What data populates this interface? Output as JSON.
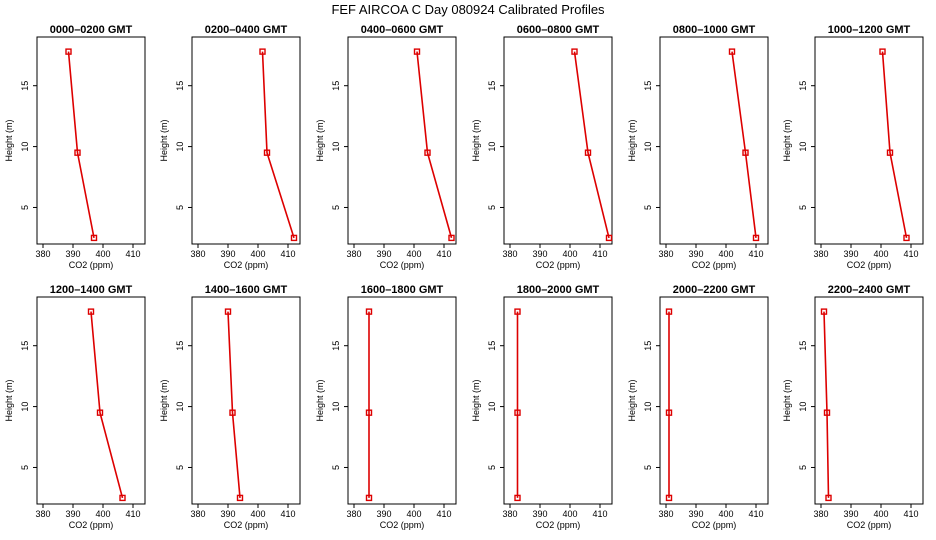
{
  "chart_data": {
    "type": "line",
    "title": "FEF  AIRCOA C  Day 080924  Calibrated Profiles",
    "xlabel": "CO2 (ppm)",
    "ylabel": "Height (m)",
    "xlim": [
      378,
      414
    ],
    "ylim": [
      2,
      19
    ],
    "xticks": [
      380,
      390,
      400,
      410
    ],
    "yticks": [
      5,
      10,
      15
    ],
    "heights": [
      17.8,
      9.5,
      2.5
    ],
    "panels": [
      {
        "title": "0000–0200 GMT",
        "values": [
          388.5,
          391.5,
          397.0
        ]
      },
      {
        "title": "0200–0400 GMT",
        "values": [
          401.5,
          403.0,
          412.0
        ]
      },
      {
        "title": "0400–0600 GMT",
        "values": [
          401.0,
          404.5,
          412.5
        ]
      },
      {
        "title": "0600–0800 GMT",
        "values": [
          401.5,
          406.0,
          413.0
        ]
      },
      {
        "title": "0800–1000 GMT",
        "values": [
          402.0,
          406.5,
          410.0
        ]
      },
      {
        "title": "1000–1200 GMT",
        "values": [
          400.5,
          403.0,
          408.5
        ]
      },
      {
        "title": "1200–1400 GMT",
        "values": [
          396.0,
          399.0,
          406.5
        ]
      },
      {
        "title": "1400–1600 GMT",
        "values": [
          390.0,
          391.5,
          394.0
        ]
      },
      {
        "title": "1600–1800 GMT",
        "values": [
          385.0,
          385.0,
          385.0
        ]
      },
      {
        "title": "1800–2000 GMT",
        "values": [
          382.5,
          382.5,
          382.5
        ]
      },
      {
        "title": "2000–2200 GMT",
        "values": [
          381.0,
          381.0,
          381.0
        ]
      },
      {
        "title": "2200–2400 GMT",
        "values": [
          381.0,
          382.0,
          382.5
        ]
      }
    ]
  }
}
